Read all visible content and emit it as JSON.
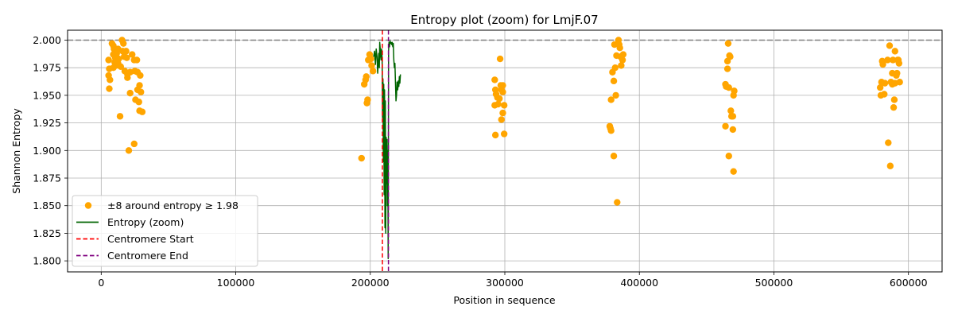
{
  "chart_data": {
    "type": "scatter",
    "title": "Entropy plot (zoom) for LmjF.07",
    "xlabel": "Position in sequence",
    "ylabel": "Shannon Entropy",
    "xlim": [
      -25000,
      625000
    ],
    "ylim": [
      1.79,
      2.009
    ],
    "x_ticks": [
      0,
      100000,
      200000,
      300000,
      400000,
      500000,
      600000
    ],
    "y_ticks": [
      1.8,
      1.825,
      1.85,
      1.875,
      1.9,
      1.925,
      1.95,
      1.975,
      2.0
    ],
    "grid": true,
    "legend_position": "lower-left",
    "colors": {
      "points": "#ffa500",
      "entropy_line": "#006400",
      "centromere_start": "#ff0000",
      "centromere_end": "#800080",
      "reference_line": "#808080"
    },
    "reference_line": {
      "y": 2.0
    },
    "centromere": {
      "start": 209000,
      "end": 213500
    },
    "series": [
      {
        "name": "±8 around entropy ≥ 1.98",
        "kind": "scatter",
        "points": [
          [
            5500,
            1.982
          ],
          [
            6000,
            1.974
          ],
          [
            5500,
            1.968
          ],
          [
            6500,
            1.964
          ],
          [
            6000,
            1.956
          ],
          [
            8000,
            1.997
          ],
          [
            9000,
            1.995
          ],
          [
            9500,
            1.992
          ],
          [
            9000,
            1.987
          ],
          [
            10500,
            1.984
          ],
          [
            10000,
            1.98
          ],
          [
            11000,
            1.977
          ],
          [
            9000,
            1.975
          ],
          [
            12500,
            1.992
          ],
          [
            11500,
            1.988
          ],
          [
            13000,
            1.983
          ],
          [
            12500,
            1.979
          ],
          [
            14500,
            1.976
          ],
          [
            15500,
            2.0
          ],
          [
            16500,
            1.997
          ],
          [
            16000,
            1.99
          ],
          [
            17000,
            1.985
          ],
          [
            18500,
            1.99
          ],
          [
            19000,
            1.984
          ],
          [
            17500,
            1.972
          ],
          [
            19500,
            1.969
          ],
          [
            19500,
            1.966
          ],
          [
            21500,
            1.971
          ],
          [
            21500,
            1.952
          ],
          [
            14000,
            1.931
          ],
          [
            20500,
            1.9
          ],
          [
            23000,
            1.987
          ],
          [
            24500,
            1.982
          ],
          [
            26500,
            1.982
          ],
          [
            25000,
            1.972
          ],
          [
            27000,
            1.971
          ],
          [
            29000,
            1.968
          ],
          [
            27000,
            1.955
          ],
          [
            28500,
            1.959
          ],
          [
            29500,
            1.953
          ],
          [
            25500,
            1.946
          ],
          [
            28000,
            1.944
          ],
          [
            28500,
            1.936
          ],
          [
            30500,
            1.935
          ],
          [
            24500,
            1.906
          ],
          [
            193500,
            1.893
          ],
          [
            196500,
            1.964
          ],
          [
            195500,
            1.96
          ],
          [
            197000,
            1.967
          ],
          [
            198500,
            1.982
          ],
          [
            199500,
            1.987
          ],
          [
            200500,
            1.983
          ],
          [
            201000,
            1.977
          ],
          [
            202000,
            1.972
          ],
          [
            198000,
            1.946
          ],
          [
            197500,
            1.943
          ],
          [
            292500,
            1.964
          ],
          [
            293000,
            1.955
          ],
          [
            293500,
            1.951
          ],
          [
            294500,
            1.948
          ],
          [
            295000,
            1.942
          ],
          [
            292500,
            1.941
          ],
          [
            296500,
            1.983
          ],
          [
            297000,
            1.959
          ],
          [
            298500,
            1.959
          ],
          [
            297500,
            1.955
          ],
          [
            298500,
            1.953
          ],
          [
            296000,
            1.947
          ],
          [
            299500,
            1.941
          ],
          [
            298500,
            1.934
          ],
          [
            297500,
            1.928
          ],
          [
            293000,
            1.914
          ],
          [
            299500,
            1.915
          ],
          [
            379000,
            1.946
          ],
          [
            378000,
            1.922
          ],
          [
            378500,
            1.92
          ],
          [
            379000,
            1.918
          ],
          [
            380000,
            1.971
          ],
          [
            381000,
            1.963
          ],
          [
            381000,
            1.895
          ],
          [
            381500,
            1.996
          ],
          [
            382000,
            1.975
          ],
          [
            382500,
            1.95
          ],
          [
            383000,
            1.986
          ],
          [
            384500,
            2.0
          ],
          [
            385000,
            1.996
          ],
          [
            385500,
            1.993
          ],
          [
            383500,
            1.853
          ],
          [
            386000,
            1.985
          ],
          [
            386500,
            1.977
          ],
          [
            387500,
            1.982
          ],
          [
            388000,
            1.987
          ],
          [
            464000,
            1.96
          ],
          [
            464500,
            1.958
          ],
          [
            464000,
            1.922
          ],
          [
            465500,
            1.974
          ],
          [
            465500,
            1.981
          ],
          [
            466000,
            1.997
          ],
          [
            466500,
            1.957
          ],
          [
            466500,
            1.895
          ],
          [
            467000,
            1.986
          ],
          [
            467500,
            1.985
          ],
          [
            468000,
            1.936
          ],
          [
            468500,
            1.931
          ],
          [
            469500,
            1.931
          ],
          [
            470000,
            1.95
          ],
          [
            470500,
            1.954
          ],
          [
            469500,
            1.919
          ],
          [
            470000,
            1.881
          ],
          [
            579000,
            1.957
          ],
          [
            579500,
            1.95
          ],
          [
            580000,
            1.962
          ],
          [
            580500,
            1.981
          ],
          [
            581000,
            1.978
          ],
          [
            582000,
            1.951
          ],
          [
            582500,
            1.961
          ],
          [
            584500,
            1.982
          ],
          [
            585000,
            1.907
          ],
          [
            586000,
            1.995
          ],
          [
            587000,
            1.962
          ],
          [
            586500,
            1.886
          ],
          [
            588000,
            1.96
          ],
          [
            588000,
            1.97
          ],
          [
            588500,
            1.982
          ],
          [
            589000,
            1.939
          ],
          [
            589500,
            1.946
          ],
          [
            590000,
            1.99
          ],
          [
            590000,
            1.961
          ],
          [
            591000,
            1.968
          ],
          [
            591500,
            1.97
          ],
          [
            592000,
            1.982
          ],
          [
            592500,
            1.982
          ],
          [
            593000,
            1.979
          ],
          [
            593500,
            1.962
          ]
        ]
      },
      {
        "name": "Entropy (zoom)",
        "kind": "line",
        "points": [
          [
            202500,
            1.985
          ],
          [
            203200,
            1.99
          ],
          [
            203800,
            1.978
          ],
          [
            204400,
            1.992
          ],
          [
            205000,
            1.985
          ],
          [
            205500,
            1.97
          ],
          [
            205900,
            1.98
          ],
          [
            206300,
            1.988
          ],
          [
            206700,
            1.975
          ],
          [
            207000,
            1.998
          ],
          [
            207400,
            1.992
          ],
          [
            207700,
            1.985
          ],
          [
            208000,
            1.982
          ],
          [
            208400,
            1.992
          ],
          [
            208800,
            1.984
          ],
          [
            209100,
            1.93
          ],
          [
            209400,
            1.965
          ],
          [
            209700,
            1.89
          ],
          [
            210000,
            1.96
          ],
          [
            210300,
            1.86
          ],
          [
            210600,
            1.955
          ],
          [
            210900,
            1.83
          ],
          [
            211200,
            1.945
          ],
          [
            211500,
            1.825
          ],
          [
            211800,
            1.912
          ],
          [
            212100,
            1.87
          ],
          [
            212400,
            1.91
          ],
          [
            212700,
            1.85
          ],
          [
            213000,
            1.9
          ],
          [
            213300,
            1.802
          ],
          [
            213600,
            1.99
          ],
          [
            213900,
            1.998
          ],
          [
            214300,
            1.994
          ],
          [
            214700,
            1.999
          ],
          [
            215100,
            1.997
          ],
          [
            215500,
            1.998
          ],
          [
            215900,
            1.996
          ],
          [
            216300,
            1.998
          ],
          [
            216700,
            1.994
          ],
          [
            217100,
            1.997
          ],
          [
            217500,
            1.982
          ],
          [
            217900,
            1.975
          ],
          [
            218300,
            1.979
          ],
          [
            218700,
            1.962
          ],
          [
            219100,
            1.945
          ],
          [
            219500,
            1.95
          ],
          [
            219900,
            1.962
          ],
          [
            220400,
            1.955
          ],
          [
            220800,
            1.963
          ],
          [
            221200,
            1.958
          ],
          [
            221600,
            1.967
          ],
          [
            222000,
            1.961
          ],
          [
            222400,
            1.969
          ]
        ]
      },
      {
        "name": "Centromere Start",
        "kind": "vline",
        "x": 209000
      },
      {
        "name": "Centromere End",
        "kind": "vline",
        "x": 213500
      }
    ]
  }
}
